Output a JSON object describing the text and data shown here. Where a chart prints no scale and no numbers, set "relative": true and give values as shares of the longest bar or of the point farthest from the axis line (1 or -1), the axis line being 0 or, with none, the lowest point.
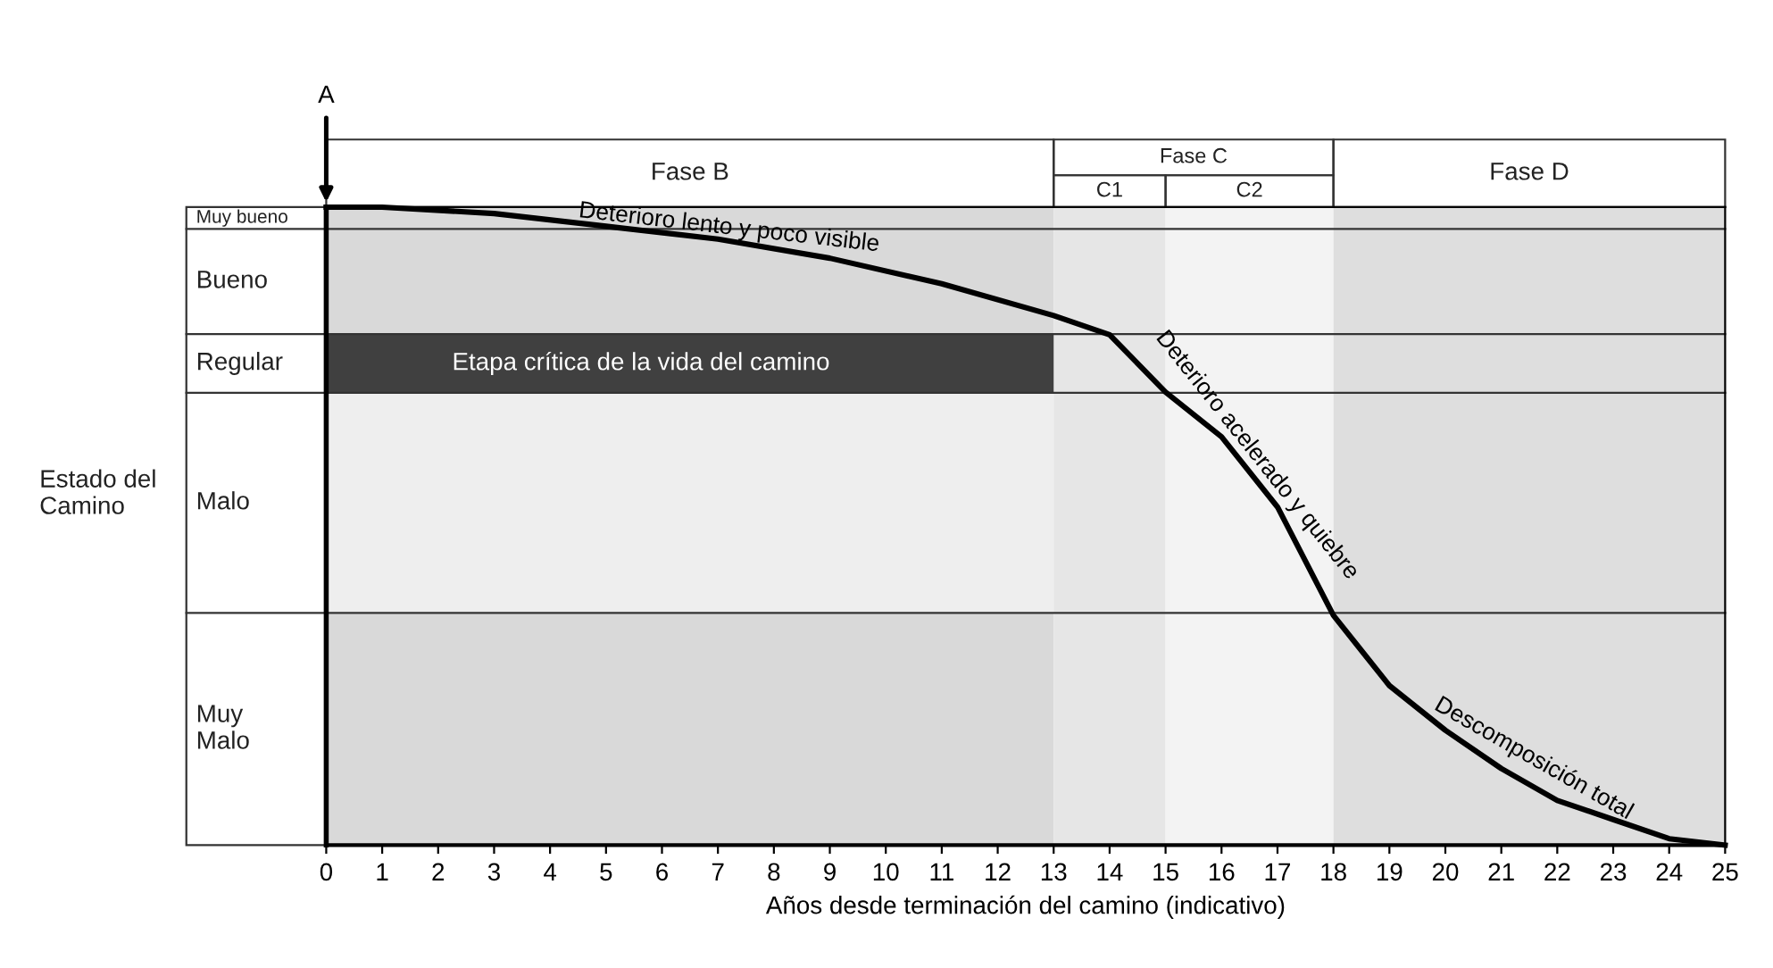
{
  "chart_data": {
    "type": "line",
    "relative": true,
    "x": [
      0,
      1,
      3,
      5,
      7,
      9,
      11,
      13,
      14,
      15,
      16,
      17,
      18,
      19,
      20,
      21,
      22,
      23,
      24,
      25
    ],
    "series": [
      {
        "color": "#000000",
        "values": [
          1.0,
          1.0,
          0.99,
          0.97,
          0.95,
          0.92,
          0.88,
          0.83,
          0.8,
          0.71,
          0.64,
          0.53,
          0.36,
          0.25,
          0.18,
          0.12,
          0.07,
          0.04,
          0.01,
          0.0
        ]
      }
    ],
    "xlim": [
      0,
      25
    ],
    "xticks": [
      0,
      1,
      2,
      3,
      4,
      5,
      6,
      7,
      8,
      9,
      10,
      11,
      12,
      13,
      14,
      15,
      16,
      17,
      18,
      19,
      20,
      21,
      22,
      23,
      24,
      25
    ],
    "xlabel": "Años desde terminación del camino (indicativo)",
    "tick_labels": "x",
    "grid": false,
    "legend": false,
    "marker": "none",
    "line_style": "solid",
    "ref_lines": [
      {
        "axis": "y",
        "value": 0.966,
        "color": "#333333"
      },
      {
        "axis": "y",
        "value": 0.801,
        "color": "#333333"
      },
      {
        "axis": "y",
        "value": 0.709,
        "color": "#333333"
      },
      {
        "axis": "y",
        "value": 0.364,
        "color": "#333333"
      }
    ],
    "bands": [
      {
        "axis": "y",
        "from": 0.709,
        "to": 0.801,
        "label": "Etapa crítica de la vida del camino",
        "color": "#404040"
      },
      {
        "axis": "y",
        "from": 0.364,
        "to": 0.709,
        "color": "#eeeeee"
      },
      {
        "axis": "x",
        "from": 0,
        "to": 13,
        "label": "Fase B",
        "color": "#d9d9d9"
      },
      {
        "axis": "x",
        "from": 13,
        "to": 15,
        "label": "C1",
        "color": "#e6e6e6"
      },
      {
        "axis": "x",
        "from": 15,
        "to": 18,
        "label": "C2",
        "color": "#f3f3f3"
      },
      {
        "axis": "x",
        "from": 18,
        "to": 25,
        "label": "Fase D",
        "color": "#dedede"
      }
    ],
    "annotations": [
      {
        "text": "A",
        "x": 0,
        "y": 1.0
      },
      {
        "text": "Deterioro lento y poco visible",
        "x": 7,
        "y": 0.95
      },
      {
        "text": "Deterioro acelerado y quiebre",
        "x": 16.3,
        "y": 0.6
      },
      {
        "text": "Descomposición total",
        "x": 21.3,
        "y": 0.12
      },
      "Fase C",
      "Muy bueno",
      "Bueno",
      "Regular",
      "Malo",
      "Muy\nMalo",
      "Estado del\nCamino"
    ]
  }
}
